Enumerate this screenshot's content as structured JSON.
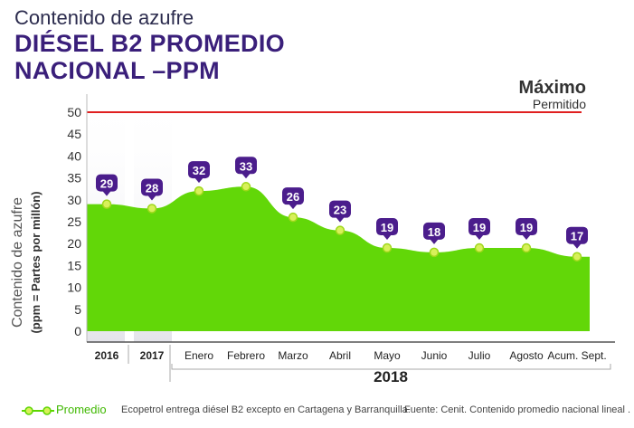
{
  "header": {
    "subtitle": "Contenido de azufre",
    "title_line1": "DIÉSEL B2 PROMEDIO",
    "title_line2": "NACIONAL –PPM"
  },
  "chart_data": {
    "type": "area",
    "categories": [
      "2016",
      "2017",
      "Enero",
      "Febrero",
      "Marzo",
      "Abril",
      "Mayo",
      "Junio",
      "Julio",
      "Agosto",
      "Acum. Sept."
    ],
    "group_label": "2018",
    "series": [
      {
        "name": "Promedio",
        "values": [
          29,
          28,
          32,
          33,
          26,
          23,
          19,
          18,
          19,
          19,
          17
        ],
        "color": "#5dd600"
      }
    ],
    "ylabel_line1": "Contenido de azufre",
    "ylabel_line2": "(ppm = Partes por millón)",
    "yticks": [
      50,
      45,
      40,
      35,
      30,
      25,
      20,
      15,
      10,
      5,
      0
    ],
    "ylim": [
      0,
      50
    ],
    "limit": {
      "value": 50,
      "label_line1": "Máximo",
      "label_line2": "Permitido",
      "color": "#e02020"
    },
    "label_color": "#4b1d8c",
    "legend_position": "bottom-left"
  },
  "footer": {
    "legend_label": "Promedio",
    "note": "Ecopetrol entrega diésel B2 excepto en Cartagena y Barranquilla.",
    "source": "Fuente: Cenit. Contenido promedio nacional lineal ."
  }
}
